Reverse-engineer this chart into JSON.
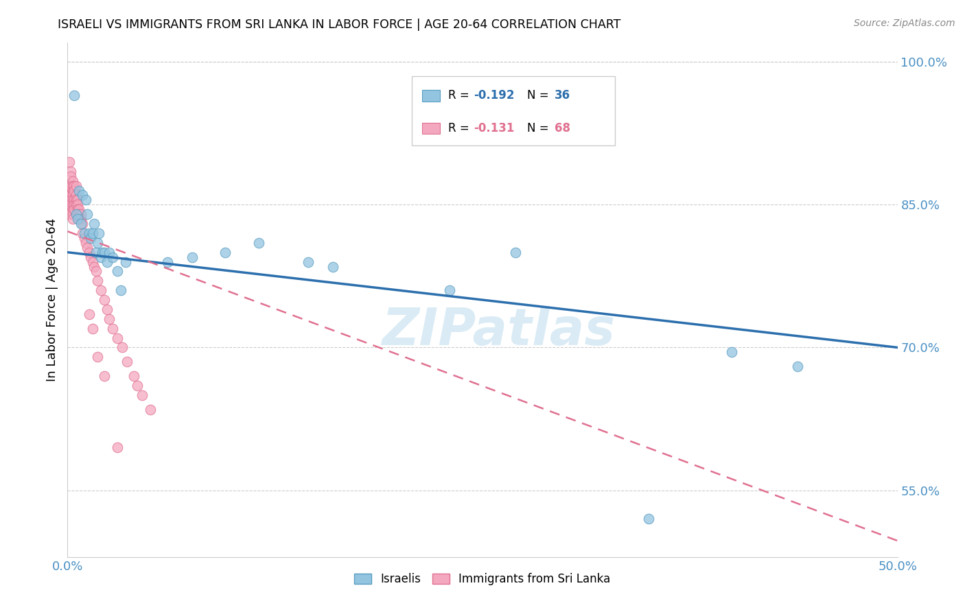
{
  "title": "ISRAELI VS IMMIGRANTS FROM SRI LANKA IN LABOR FORCE | AGE 20-64 CORRELATION CHART",
  "source": "Source: ZipAtlas.com",
  "ylabel": "In Labor Force | Age 20-64",
  "xlim": [
    0.0,
    0.5
  ],
  "ylim": [
    0.48,
    1.02
  ],
  "yticks": [
    0.55,
    0.7,
    0.85,
    1.0
  ],
  "ytick_labels": [
    "55.0%",
    "70.0%",
    "85.0%",
    "100.0%"
  ],
  "xticks": [
    0.0,
    0.05,
    0.1,
    0.15,
    0.2,
    0.25,
    0.3,
    0.35,
    0.4,
    0.45,
    0.5
  ],
  "xtick_labels": [
    "0.0%",
    "",
    "",
    "",
    "",
    "",
    "",
    "",
    "",
    "",
    "50.0%"
  ],
  "blue_color": "#93c4e0",
  "pink_color": "#f4a8bf",
  "blue_edge_color": "#5a9ec0",
  "pink_edge_color": "#e07090",
  "blue_line_color": "#2c6fad",
  "pink_line_color": "#e07090",
  "axis_color": "#4a90c4",
  "legend_label_blue": "Israelis",
  "legend_label_pink": "Immigrants from Sri Lanka",
  "watermark": "ZIPatlas",
  "blue_line_x0": 0.0,
  "blue_line_y0": 0.8,
  "blue_line_x1": 0.5,
  "blue_line_y1": 0.7,
  "pink_line_x0": 0.0,
  "pink_line_y0": 0.822,
  "pink_line_x1": 0.5,
  "pink_line_y1": 0.497,
  "israelis_x": [
    0.004,
    0.005,
    0.006,
    0.007,
    0.008,
    0.009,
    0.01,
    0.011,
    0.012,
    0.013,
    0.014,
    0.015,
    0.016,
    0.017,
    0.018,
    0.019,
    0.02,
    0.021,
    0.022,
    0.024,
    0.025,
    0.027,
    0.03,
    0.032,
    0.035,
    0.06,
    0.075,
    0.095,
    0.115,
    0.145,
    0.16,
    0.23,
    0.27,
    0.35,
    0.4,
    0.44
  ],
  "israelis_y": [
    0.965,
    0.84,
    0.835,
    0.865,
    0.83,
    0.86,
    0.82,
    0.855,
    0.84,
    0.82,
    0.815,
    0.82,
    0.83,
    0.8,
    0.81,
    0.82,
    0.795,
    0.8,
    0.8,
    0.79,
    0.8,
    0.795,
    0.78,
    0.76,
    0.79,
    0.79,
    0.795,
    0.8,
    0.81,
    0.79,
    0.785,
    0.76,
    0.8,
    0.52,
    0.695,
    0.68
  ],
  "srilanka_x": [
    0.001,
    0.001,
    0.001,
    0.001,
    0.001,
    0.001,
    0.001,
    0.002,
    0.002,
    0.002,
    0.002,
    0.002,
    0.002,
    0.003,
    0.003,
    0.003,
    0.003,
    0.003,
    0.003,
    0.003,
    0.003,
    0.003,
    0.004,
    0.004,
    0.004,
    0.004,
    0.004,
    0.005,
    0.005,
    0.005,
    0.005,
    0.006,
    0.006,
    0.006,
    0.007,
    0.007,
    0.007,
    0.008,
    0.008,
    0.009,
    0.009,
    0.01,
    0.011,
    0.012,
    0.013,
    0.014,
    0.015,
    0.016,
    0.017,
    0.018,
    0.02,
    0.022,
    0.024,
    0.025,
    0.027,
    0.03,
    0.033,
    0.036,
    0.04,
    0.042,
    0.045,
    0.05,
    0.013,
    0.015,
    0.018,
    0.022,
    0.03
  ],
  "srilanka_y": [
    0.87,
    0.86,
    0.855,
    0.85,
    0.845,
    0.84,
    0.895,
    0.87,
    0.86,
    0.855,
    0.85,
    0.885,
    0.88,
    0.875,
    0.87,
    0.865,
    0.86,
    0.855,
    0.85,
    0.845,
    0.84,
    0.835,
    0.87,
    0.865,
    0.855,
    0.85,
    0.845,
    0.87,
    0.86,
    0.855,
    0.85,
    0.855,
    0.85,
    0.845,
    0.845,
    0.84,
    0.835,
    0.84,
    0.835,
    0.83,
    0.82,
    0.815,
    0.81,
    0.805,
    0.8,
    0.795,
    0.79,
    0.785,
    0.78,
    0.77,
    0.76,
    0.75,
    0.74,
    0.73,
    0.72,
    0.71,
    0.7,
    0.685,
    0.67,
    0.66,
    0.65,
    0.635,
    0.735,
    0.72,
    0.69,
    0.67,
    0.595
  ]
}
